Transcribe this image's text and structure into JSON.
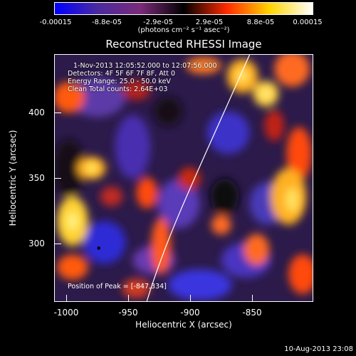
{
  "colorbar": {
    "labels": [
      "-0.00015",
      "-8.8e-05",
      "-2.9e-05",
      "2.9e-05",
      "8.8e-05",
      "0.00015"
    ],
    "units": "(photons cm⁻² s⁻¹ asec⁻²)",
    "colors": [
      "#0000ff",
      "#4b2a9f",
      "#7a2b7a",
      "#000000",
      "#ff2a00",
      "#ffd400",
      "#ffffff"
    ]
  },
  "title": "Reconstructed RHESSI Image",
  "info": {
    "time_range": "1-Nov-2013 12:05:52.000 to 12:07:56.000",
    "detectors": "Detectors: 4F 5F 6F 7F 8F, Att 0",
    "energy": "Energy Range: 25.0 - 50.0 keV",
    "clean": "Clean    Total counts: 2.64E+03"
  },
  "peak": "Position of Peak = [-847,334]",
  "xaxis": {
    "label": "Heliocentric X (arcsec)",
    "ticks": [
      "-1000",
      "-950",
      "-900",
      "-850"
    ]
  },
  "yaxis": {
    "label": "Heliocentric Y (arcsec)",
    "ticks": [
      "300",
      "350",
      "400"
    ]
  },
  "timestamp": "10-Aug-2013 23:08"
}
